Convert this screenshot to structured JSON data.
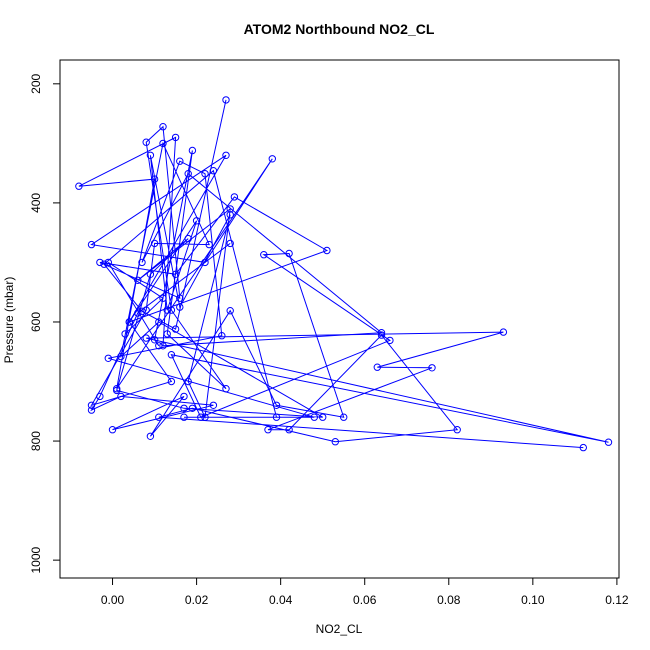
{
  "chart_data": {
    "type": "line",
    "title": "ATOM2 Northbound NO2_CL",
    "xlabel": "NO2_CL",
    "ylabel": "Pressure (mbar)",
    "xlim": [
      -0.0125,
      0.1205
    ],
    "ylim": [
      1030,
      160
    ],
    "y_reversed": true,
    "x_ticks": [
      0.0,
      0.02,
      0.04,
      0.06,
      0.08,
      0.1,
      0.12
    ],
    "x_tick_labels": [
      "0.00",
      "0.02",
      "0.04",
      "0.06",
      "0.08",
      "0.10",
      "0.12"
    ],
    "y_ticks": [
      200,
      400,
      600,
      800,
      1000
    ],
    "y_tick_labels": [
      "200",
      "400",
      "600",
      "800",
      "1000"
    ],
    "color": "#0000FF",
    "marker": "open-circle",
    "grid": false,
    "series": [
      {
        "points": [
          [
            0.027,
            227
          ],
          [
            0.015,
            612
          ],
          [
            0.007,
            582
          ],
          [
            -0.002,
            503
          ],
          [
            0.024,
            346
          ],
          [
            0.039,
            760
          ],
          [
            0.017,
            760
          ],
          [
            0.048,
            760
          ],
          [
            -0.001,
            661
          ],
          [
            0.026,
            623
          ],
          [
            0.022,
            351
          ],
          [
            0.016,
            330
          ],
          [
            0.007,
            500
          ],
          [
            0.018,
            351
          ],
          [
            0.064,
            618
          ],
          [
            0.012,
            640
          ],
          [
            0.015,
            290
          ],
          [
            -0.008,
            372
          ],
          [
            0.01,
            360
          ],
          [
            0.001,
            712
          ],
          [
            0.038,
            326
          ],
          [
            0.022,
            500
          ],
          [
            -0.005,
            470
          ],
          [
            0.027,
            320
          ],
          [
            0.004,
            600
          ],
          [
            0.014,
            700
          ],
          [
            -0.005,
            740
          ],
          [
            0.008,
            580
          ],
          [
            0.01,
            468
          ],
          [
            0.023,
            470
          ],
          [
            0.012,
            300
          ],
          [
            0.002,
            658
          ],
          [
            0.011,
            600
          ],
          [
            0.05,
            760
          ],
          [
            0.017,
            745
          ],
          [
            0.001,
            715
          ],
          [
            0.009,
            520
          ],
          [
            0.018,
            460
          ],
          [
            0.006,
            530
          ],
          [
            0.028,
            410
          ],
          [
            0.022,
            760
          ],
          [
            0.018,
            700
          ],
          [
            0.028,
            420
          ],
          [
            0.016,
            575
          ],
          [
            0.009,
            320
          ],
          [
            0.013,
            580
          ],
          [
            0.02,
            430
          ],
          [
            0.004,
            600
          ],
          [
            0.051,
            480
          ],
          [
            0.029,
            390
          ],
          [
            0.015,
            520
          ],
          [
            -0.003,
            500
          ],
          [
            0.016,
            560
          ],
          [
            0.012,
            272
          ],
          [
            0.008,
            298
          ],
          [
            0.014,
            580
          ],
          [
            0.027,
            712
          ],
          [
            0.013,
            620
          ],
          [
            0.019,
            312
          ],
          [
            0.01,
            630
          ],
          [
            0.011,
            640
          ],
          [
            -0.001,
            500
          ],
          [
            0.012,
            560
          ],
          [
            0.003,
            620
          ]
        ]
      },
      {
        "points": [
          [
            0.112,
            811
          ],
          [
            0.011,
            760
          ],
          [
            0.019,
            745
          ],
          [
            0.053,
            801
          ],
          [
            0.082,
            781
          ],
          [
            0.064,
            622
          ],
          [
            0.042,
            781
          ],
          [
            0.037,
            781
          ],
          [
            0.076,
            677
          ],
          [
            0.063,
            676
          ],
          [
            0.093,
            617
          ],
          [
            0.008,
            627
          ],
          [
            0.118,
            802
          ],
          [
            0.014,
            655
          ],
          [
            0.021,
            760
          ],
          [
            0.066,
            631
          ],
          [
            0.036,
            487
          ],
          [
            0.042,
            485
          ],
          [
            0.055,
            760
          ],
          [
            0.039,
            740
          ],
          [
            0.028,
            581
          ],
          [
            0.009,
            792
          ],
          [
            0.017,
            725
          ],
          [
            0.0,
            781
          ],
          [
            0.024,
            740
          ],
          [
            0.002,
            725
          ],
          [
            -0.005,
            748
          ],
          [
            -0.003,
            725
          ],
          [
            0.006,
            585
          ],
          [
            0.028,
            468
          ]
        ]
      }
    ]
  }
}
